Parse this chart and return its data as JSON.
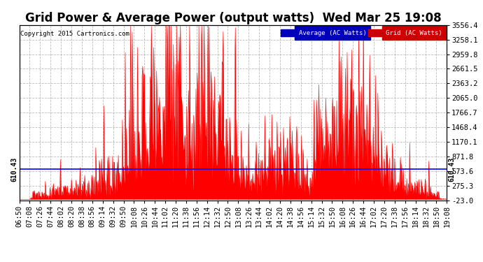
{
  "title": "Grid Power & Average Power (output watts)  Wed Mar 25 19:08",
  "copyright": "Copyright 2015 Cartronics.com",
  "ylabel_right_ticks": [
    3556.4,
    3258.1,
    2959.8,
    2661.5,
    2363.2,
    2065.0,
    1766.7,
    1468.4,
    1170.1,
    871.8,
    573.6,
    275.3,
    -23.0
  ],
  "ylim": [
    -23.0,
    3556.4
  ],
  "average_value": 610.43,
  "average_label": "610.43",
  "legend_items": [
    {
      "label": "Average (AC Watts)",
      "bg": "#0000bb",
      "fg": "#ffffff"
    },
    {
      "label": "Grid (AC Watts)",
      "bg": "#cc0000",
      "fg": "#ffffff"
    }
  ],
  "x_tick_labels": [
    "06:50",
    "07:08",
    "07:26",
    "07:44",
    "08:02",
    "08:20",
    "08:38",
    "08:56",
    "09:14",
    "09:32",
    "09:50",
    "10:08",
    "10:26",
    "10:44",
    "11:02",
    "11:20",
    "11:38",
    "11:56",
    "12:14",
    "12:32",
    "12:50",
    "13:08",
    "13:26",
    "13:44",
    "14:02",
    "14:20",
    "14:38",
    "14:56",
    "15:14",
    "15:32",
    "15:50",
    "16:08",
    "16:26",
    "16:44",
    "17:02",
    "17:20",
    "17:38",
    "17:56",
    "18:14",
    "18:32",
    "18:50",
    "19:08"
  ],
  "grid_color": "#aaaaaa",
  "background_color": "#ffffff",
  "plot_bg_color": "#ffffff",
  "bar_color": "#ff0000",
  "avg_line_color": "#0000ff",
  "title_fontsize": 12,
  "tick_fontsize": 7.5,
  "n_points": 739
}
